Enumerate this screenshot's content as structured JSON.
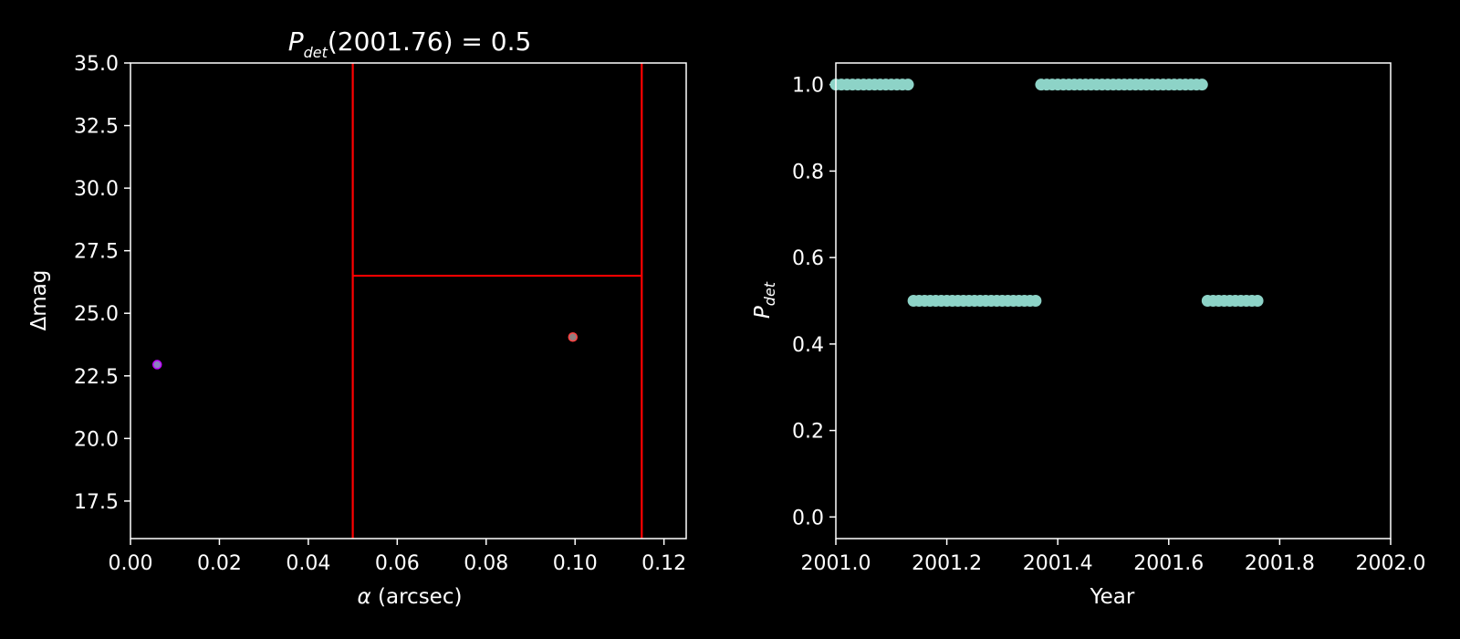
{
  "chart_data": [
    {
      "type": "scatter",
      "title": {
        "main": "P",
        "sub": "det",
        "rest": "(2001.76) = 0.5"
      },
      "xlabel": {
        "symbol": "α",
        "rest": " (arcsec)"
      },
      "ylabel": "Δmag",
      "xlim": [
        0,
        0.125
      ],
      "ylim": [
        16,
        35
      ],
      "xticks": [
        "0.00",
        "0.02",
        "0.04",
        "0.06",
        "0.08",
        "0.10",
        "0.12"
      ],
      "yticks": [
        "17.5",
        "20.0",
        "22.5",
        "25.0",
        "27.5",
        "30.0",
        "32.5",
        "35.0"
      ],
      "points": [
        {
          "x": 0.006,
          "y": 22.95,
          "fill": "#8a7fc0",
          "edge": "#c000ff"
        },
        {
          "x": 0.0995,
          "y": 24.05,
          "fill": "#8f7f7f",
          "edge": "#ff4040"
        }
      ],
      "red_lines": {
        "color": "#ff0000",
        "x_left": 0.05,
        "x_right": 0.115,
        "y_cut": 26.5
      },
      "grid": false
    },
    {
      "type": "scatter",
      "xlabel": "Year",
      "ylabel": {
        "main": "P",
        "sub": "det"
      },
      "xlim": [
        2001.0,
        2002.0
      ],
      "ylim": [
        -0.05,
        1.05
      ],
      "xticks": [
        "2001.0",
        "2001.2",
        "2001.4",
        "2001.6",
        "2001.8",
        "2002.0"
      ],
      "yticks": [
        "0.0",
        "0.2",
        "0.4",
        "0.6",
        "0.8",
        "1.0"
      ],
      "color": "#8dd3c7",
      "segments": [
        {
          "x_start": 2001.0,
          "x_end": 2001.13,
          "y": 1.0
        },
        {
          "x_start": 2001.14,
          "x_end": 2001.36,
          "y": 0.5
        },
        {
          "x_start": 2001.37,
          "x_end": 2001.66,
          "y": 1.0
        },
        {
          "x_start": 2001.67,
          "x_end": 2001.76,
          "y": 0.5
        }
      ],
      "point_spacing": 0.01,
      "grid": false
    }
  ]
}
